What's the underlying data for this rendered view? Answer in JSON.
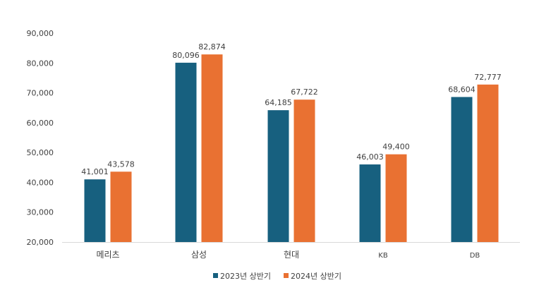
{
  "chart_data": {
    "type": "bar",
    "title": "",
    "xlabel": "",
    "ylabel": "",
    "ylim": [
      20000,
      90000
    ],
    "yticks": [
      20000,
      30000,
      40000,
      50000,
      60000,
      70000,
      80000,
      90000
    ],
    "ytick_labels": [
      "20,000",
      "30,000",
      "40,000",
      "50,000",
      "60,000",
      "70,000",
      "80,000",
      "90,000"
    ],
    "grid": false,
    "legend_position": "bottom",
    "categories": [
      "메리츠",
      "삼성",
      "현대",
      "KB",
      "DB"
    ],
    "series": [
      {
        "name": "2023년 상반기",
        "color": "#17607F",
        "values": [
          41001,
          80096,
          64185,
          46003,
          68604
        ],
        "labels": [
          "41,001",
          "80,096",
          "64,185",
          "46,003",
          "68,604"
        ]
      },
      {
        "name": "2024년 상반기",
        "color": "#E97132",
        "values": [
          43578,
          82874,
          67722,
          49400,
          72777
        ],
        "labels": [
          "43,578",
          "82,874",
          "67,722",
          "49,400",
          "72,777"
        ]
      }
    ]
  }
}
